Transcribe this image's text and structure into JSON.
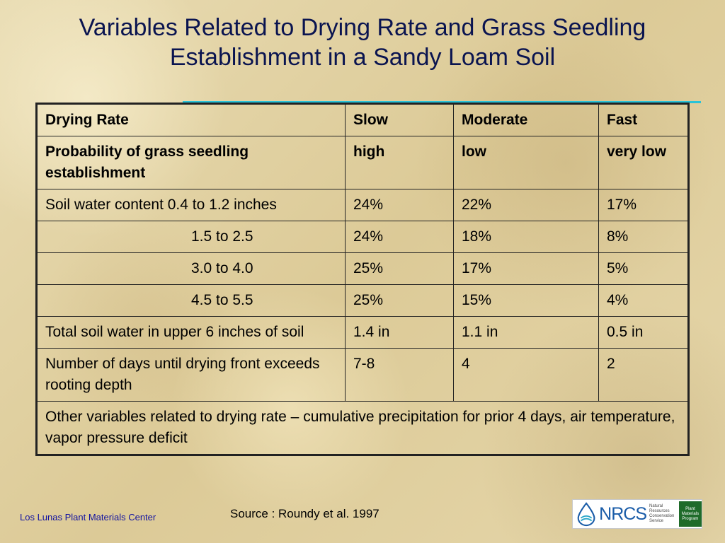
{
  "slide": {
    "title_line1": "Variables Related to Drying Rate and Grass Seedling",
    "title_line2": "Establishment in a Sandy Loam Soil",
    "accent_color": "#29c3d8",
    "title_color": "#0a1450"
  },
  "table": {
    "header": [
      "Drying Rate",
      "Slow",
      "Moderate",
      "Fast"
    ],
    "probability_row": [
      "Probability of grass seedling establishment",
      "high",
      "low",
      "very low"
    ],
    "soil_water_rows": [
      [
        "Soil water content 0.4 to 1.2 inches",
        "24%",
        "22%",
        "17%"
      ],
      [
        "1.5 to 2.5",
        "24%",
        "18%",
        "8%"
      ],
      [
        "3.0 to 4.0",
        "25%",
        "17%",
        "5%"
      ],
      [
        "4.5 to 5.5",
        "25%",
        "15%",
        "4%"
      ]
    ],
    "total_row": [
      "Total soil water in upper 6 inches of soil",
      "1.4 in",
      "1.1 in",
      "0.5 in"
    ],
    "days_row": [
      "Number of days until drying front exceeds rooting depth",
      "7-8",
      "4",
      "2"
    ],
    "other_variables": "Other variables related to drying rate – cumulative precipitation for prior 4 days, air temperature, vapor pressure deficit"
  },
  "footer": {
    "center_name": "Los Lunas Plant Materials Center",
    "source": "Source : Roundy et al. 1997",
    "logo_text": "NRCS",
    "logo_agency": "Natural Resources Conservation Service",
    "logo_program": "Plant Materials Program"
  }
}
